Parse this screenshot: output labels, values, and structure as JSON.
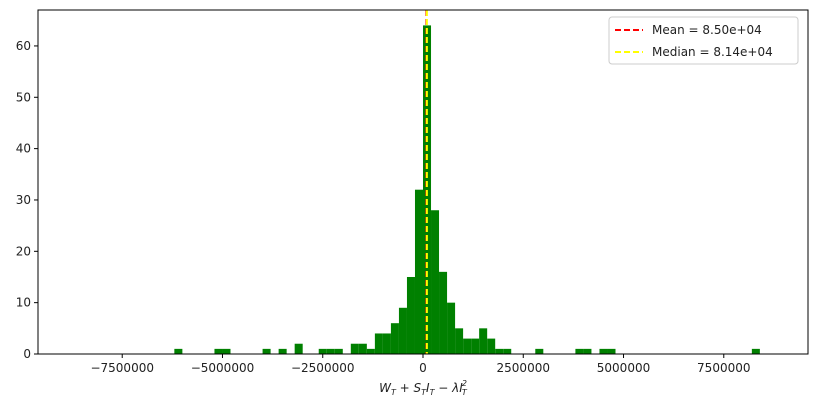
{
  "chart_data": {
    "type": "bar",
    "subtype": "histogram",
    "title": "",
    "xlabel": "W_T + S_T I_T − λ I_T^2",
    "ylabel": "",
    "xlim": [
      -9600000,
      9600000
    ],
    "ylim": [
      0,
      67
    ],
    "grid": false,
    "legend_position": "top-right",
    "bar_color": "#008000",
    "bin_width": 200000,
    "bins": [
      {
        "x": -6100000,
        "count": 1
      },
      {
        "x": -5100000,
        "count": 1
      },
      {
        "x": -4900000,
        "count": 1
      },
      {
        "x": -3900000,
        "count": 1
      },
      {
        "x": -3500000,
        "count": 1
      },
      {
        "x": -3100000,
        "count": 2
      },
      {
        "x": -2500000,
        "count": 1
      },
      {
        "x": -2300000,
        "count": 1
      },
      {
        "x": -2100000,
        "count": 1
      },
      {
        "x": -1700000,
        "count": 2
      },
      {
        "x": -1500000,
        "count": 2
      },
      {
        "x": -1300000,
        "count": 1
      },
      {
        "x": -1100000,
        "count": 4
      },
      {
        "x": -900000,
        "count": 4
      },
      {
        "x": -700000,
        "count": 6
      },
      {
        "x": -500000,
        "count": 9
      },
      {
        "x": -300000,
        "count": 15
      },
      {
        "x": -100000,
        "count": 32
      },
      {
        "x": 100000,
        "count": 64
      },
      {
        "x": 300000,
        "count": 28
      },
      {
        "x": 500000,
        "count": 16
      },
      {
        "x": 700000,
        "count": 10
      },
      {
        "x": 900000,
        "count": 5
      },
      {
        "x": 1100000,
        "count": 3
      },
      {
        "x": 1300000,
        "count": 3
      },
      {
        "x": 1500000,
        "count": 5
      },
      {
        "x": 1700000,
        "count": 3
      },
      {
        "x": 1900000,
        "count": 1
      },
      {
        "x": 2100000,
        "count": 1
      },
      {
        "x": 2900000,
        "count": 1
      },
      {
        "x": 3900000,
        "count": 1
      },
      {
        "x": 4100000,
        "count": 1
      },
      {
        "x": 4500000,
        "count": 1
      },
      {
        "x": 4700000,
        "count": 1
      },
      {
        "x": 8300000,
        "count": 1
      }
    ],
    "x_ticks": [
      {
        "value": -7500000,
        "label": "−7500000"
      },
      {
        "value": -5000000,
        "label": "−5000000"
      },
      {
        "value": -2500000,
        "label": "−2500000"
      },
      {
        "value": 0,
        "label": "0"
      },
      {
        "value": 2500000,
        "label": "2500000"
      },
      {
        "value": 5000000,
        "label": "5000000"
      },
      {
        "value": 7500000,
        "label": "7500000"
      }
    ],
    "y_ticks": [
      {
        "value": 0,
        "label": "0"
      },
      {
        "value": 10,
        "label": "10"
      },
      {
        "value": 20,
        "label": "20"
      },
      {
        "value": 30,
        "label": "30"
      },
      {
        "value": 40,
        "label": "40"
      },
      {
        "value": 50,
        "label": "50"
      },
      {
        "value": 60,
        "label": "60"
      }
    ],
    "reference_lines": [
      {
        "name": "Mean = 8.50e+04",
        "value": 85000,
        "color": "#ff0000",
        "style": "dashed"
      },
      {
        "name": "Median = 8.14e+04",
        "value": 81400,
        "color": "#ffff00",
        "style": "dashed"
      }
    ]
  }
}
